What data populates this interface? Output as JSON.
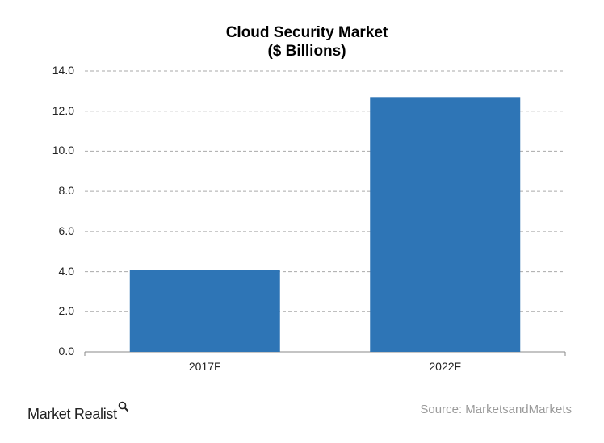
{
  "chart_data": {
    "type": "bar",
    "title": "Cloud Security Market",
    "subtitle": "($ Billions)",
    "categories": [
      "2017F",
      "2022F"
    ],
    "values": [
      4.1,
      12.7
    ],
    "ylim": [
      0,
      14
    ],
    "yticks": [
      "0.0",
      "2.0",
      "4.0",
      "6.0",
      "8.0",
      "10.0",
      "12.0",
      "14.0"
    ],
    "grid": true,
    "bar_color": "#2e75b6",
    "source": "Source: MarketsandMarkets"
  },
  "branding": {
    "logo": "Market Realist",
    "logo_icon": "magnifier-icon"
  }
}
